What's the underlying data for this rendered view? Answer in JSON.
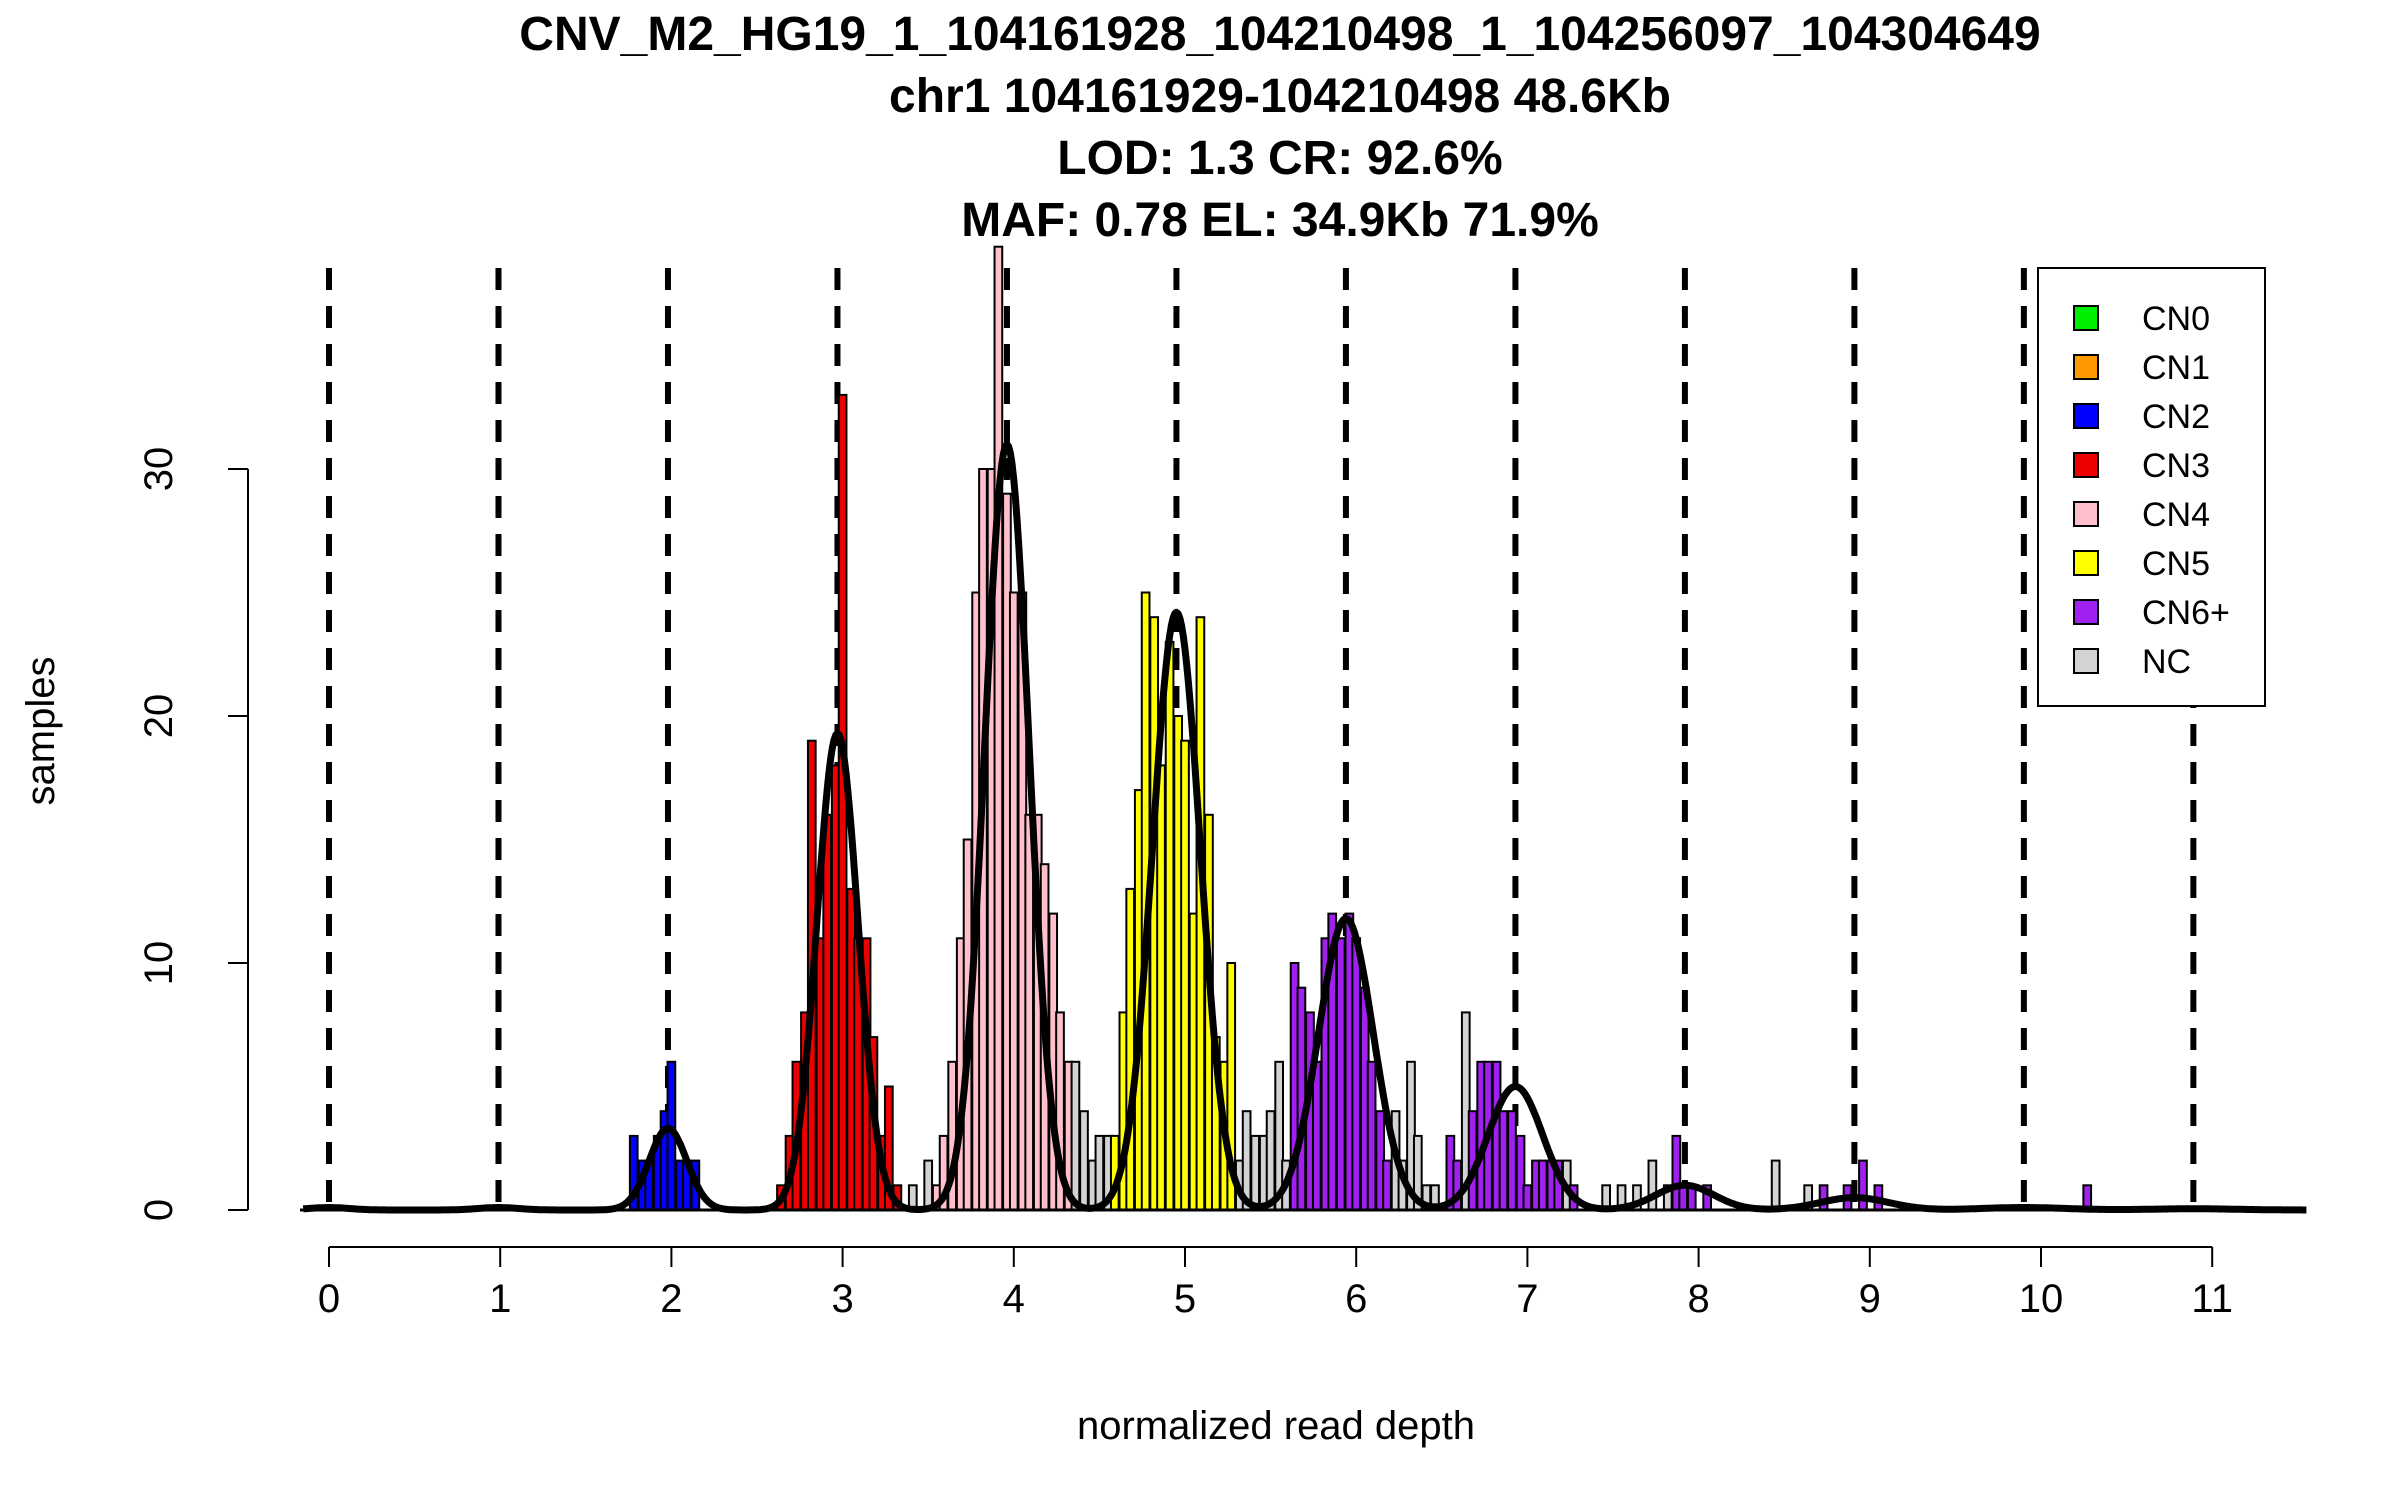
{
  "chart_data": {
    "type": "histogram",
    "title_lines": [
      "CNV_M2_HG19_1_104161928_104210498_1_104256097_104304649",
      "chr1 104161929-104210498 48.6Kb",
      "LOD: 1.3 CR: 92.6%",
      "MAF: 0.78 EL: 34.9Kb 71.9%"
    ],
    "xlabel": "normalized read depth",
    "ylabel": "samples",
    "xlim": [
      -0.15,
      11.55
    ],
    "ylim": [
      0,
      39
    ],
    "x_ticks": [
      0,
      1,
      2,
      3,
      4,
      5,
      6,
      7,
      8,
      9,
      10,
      11
    ],
    "y_ticks": [
      0,
      10,
      20,
      30
    ],
    "dashed_lines": [
      0,
      0.99,
      1.98,
      2.97,
      3.96,
      4.95,
      5.94,
      6.93,
      7.92,
      8.91,
      9.9,
      10.89
    ],
    "bin_width": 0.045,
    "legend": [
      {
        "label": "CN0",
        "color": "#00ee00"
      },
      {
        "label": "CN1",
        "color": "#ff9900"
      },
      {
        "label": "CN2",
        "color": "#0000ff"
      },
      {
        "label": "CN3",
        "color": "#ee0000"
      },
      {
        "label": "CN4",
        "color": "#ffc0cb"
      },
      {
        "label": "CN5",
        "color": "#ffff00"
      },
      {
        "label": "CN6+",
        "color": "#a020f0"
      },
      {
        "label": "NC",
        "color": "#d3d3d3"
      }
    ],
    "bars": [
      {
        "x": 1.78,
        "y": 3,
        "c": "CN2"
      },
      {
        "x": 1.83,
        "y": 2,
        "c": "CN2"
      },
      {
        "x": 1.87,
        "y": 2,
        "c": "CN2"
      },
      {
        "x": 1.92,
        "y": 3,
        "c": "CN2"
      },
      {
        "x": 1.96,
        "y": 4,
        "c": "CN2"
      },
      {
        "x": 2.0,
        "y": 6,
        "c": "CN2"
      },
      {
        "x": 2.05,
        "y": 2,
        "c": "CN2"
      },
      {
        "x": 2.09,
        "y": 2,
        "c": "CN2"
      },
      {
        "x": 2.14,
        "y": 2,
        "c": "CN2"
      },
      {
        "x": 2.64,
        "y": 1,
        "c": "CN3"
      },
      {
        "x": 2.69,
        "y": 3,
        "c": "CN3"
      },
      {
        "x": 2.73,
        "y": 6,
        "c": "CN3"
      },
      {
        "x": 2.78,
        "y": 8,
        "c": "CN3"
      },
      {
        "x": 2.82,
        "y": 19,
        "c": "CN3"
      },
      {
        "x": 2.87,
        "y": 11,
        "c": "CN3"
      },
      {
        "x": 2.91,
        "y": 16,
        "c": "CN3"
      },
      {
        "x": 2.96,
        "y": 18,
        "c": "CN3"
      },
      {
        "x": 3.0,
        "y": 33,
        "c": "CN3"
      },
      {
        "x": 3.05,
        "y": 13,
        "c": "CN3"
      },
      {
        "x": 3.09,
        "y": 11,
        "c": "CN3"
      },
      {
        "x": 3.14,
        "y": 11,
        "c": "CN3"
      },
      {
        "x": 3.18,
        "y": 7,
        "c": "CN3"
      },
      {
        "x": 3.23,
        "y": 3,
        "c": "CN3"
      },
      {
        "x": 3.27,
        "y": 5,
        "c": "CN3"
      },
      {
        "x": 3.32,
        "y": 1,
        "c": "CN3"
      },
      {
        "x": 3.41,
        "y": 1,
        "c": "NC"
      },
      {
        "x": 3.5,
        "y": 2,
        "c": "NC"
      },
      {
        "x": 3.55,
        "y": 1,
        "c": "CN4"
      },
      {
        "x": 3.59,
        "y": 3,
        "c": "CN4"
      },
      {
        "x": 3.64,
        "y": 6,
        "c": "CN4"
      },
      {
        "x": 3.69,
        "y": 11,
        "c": "CN4"
      },
      {
        "x": 3.73,
        "y": 15,
        "c": "CN4"
      },
      {
        "x": 3.78,
        "y": 25,
        "c": "CN4"
      },
      {
        "x": 3.82,
        "y": 30,
        "c": "CN4"
      },
      {
        "x": 3.87,
        "y": 30,
        "c": "CN4"
      },
      {
        "x": 3.91,
        "y": 39,
        "c": "CN4"
      },
      {
        "x": 3.96,
        "y": 29,
        "c": "CN4"
      },
      {
        "x": 4.0,
        "y": 25,
        "c": "CN4"
      },
      {
        "x": 4.05,
        "y": 25,
        "c": "CN4"
      },
      {
        "x": 4.09,
        "y": 16,
        "c": "CN4"
      },
      {
        "x": 4.14,
        "y": 16,
        "c": "CN4"
      },
      {
        "x": 4.18,
        "y": 14,
        "c": "CN4"
      },
      {
        "x": 4.23,
        "y": 12,
        "c": "CN4"
      },
      {
        "x": 4.27,
        "y": 8,
        "c": "CN4"
      },
      {
        "x": 4.32,
        "y": 6,
        "c": "CN4"
      },
      {
        "x": 4.36,
        "y": 6,
        "c": "NC"
      },
      {
        "x": 4.41,
        "y": 4,
        "c": "NC"
      },
      {
        "x": 4.46,
        "y": 2,
        "c": "NC"
      },
      {
        "x": 4.5,
        "y": 3,
        "c": "NC"
      },
      {
        "x": 4.55,
        "y": 3,
        "c": "NC"
      },
      {
        "x": 4.59,
        "y": 3,
        "c": "CN5"
      },
      {
        "x": 4.64,
        "y": 8,
        "c": "CN5"
      },
      {
        "x": 4.68,
        "y": 13,
        "c": "CN5"
      },
      {
        "x": 4.73,
        "y": 17,
        "c": "CN5"
      },
      {
        "x": 4.77,
        "y": 25,
        "c": "CN5"
      },
      {
        "x": 4.82,
        "y": 24,
        "c": "CN5"
      },
      {
        "x": 4.86,
        "y": 18,
        "c": "CN5"
      },
      {
        "x": 4.91,
        "y": 23,
        "c": "CN5"
      },
      {
        "x": 4.96,
        "y": 20,
        "c": "CN5"
      },
      {
        "x": 5.0,
        "y": 19,
        "c": "CN5"
      },
      {
        "x": 5.05,
        "y": 12,
        "c": "CN5"
      },
      {
        "x": 5.09,
        "y": 24,
        "c": "CN5"
      },
      {
        "x": 5.14,
        "y": 16,
        "c": "CN5"
      },
      {
        "x": 5.18,
        "y": 7,
        "c": "CN5"
      },
      {
        "x": 5.23,
        "y": 6,
        "c": "CN5"
      },
      {
        "x": 5.27,
        "y": 10,
        "c": "CN5"
      },
      {
        "x": 5.32,
        "y": 2,
        "c": "NC"
      },
      {
        "x": 5.36,
        "y": 4,
        "c": "NC"
      },
      {
        "x": 5.41,
        "y": 3,
        "c": "NC"
      },
      {
        "x": 5.46,
        "y": 3,
        "c": "NC"
      },
      {
        "x": 5.5,
        "y": 4,
        "c": "NC"
      },
      {
        "x": 5.55,
        "y": 6,
        "c": "NC"
      },
      {
        "x": 5.59,
        "y": 2,
        "c": "NC"
      },
      {
        "x": 5.64,
        "y": 10,
        "c": "CN6+"
      },
      {
        "x": 5.68,
        "y": 9,
        "c": "CN6+"
      },
      {
        "x": 5.73,
        "y": 8,
        "c": "CN6+"
      },
      {
        "x": 5.77,
        "y": 6,
        "c": "CN6+"
      },
      {
        "x": 5.82,
        "y": 11,
        "c": "CN6+"
      },
      {
        "x": 5.86,
        "y": 12,
        "c": "CN6+"
      },
      {
        "x": 5.91,
        "y": 11,
        "c": "CN6+"
      },
      {
        "x": 5.96,
        "y": 12,
        "c": "CN6+"
      },
      {
        "x": 6.0,
        "y": 11,
        "c": "CN6+"
      },
      {
        "x": 6.05,
        "y": 9,
        "c": "CN6+"
      },
      {
        "x": 6.09,
        "y": 6,
        "c": "CN6+"
      },
      {
        "x": 6.14,
        "y": 4,
        "c": "CN6+"
      },
      {
        "x": 6.18,
        "y": 2,
        "c": "CN6+"
      },
      {
        "x": 6.23,
        "y": 4,
        "c": "NC"
      },
      {
        "x": 6.27,
        "y": 2,
        "c": "NC"
      },
      {
        "x": 6.32,
        "y": 6,
        "c": "NC"
      },
      {
        "x": 6.36,
        "y": 3,
        "c": "NC"
      },
      {
        "x": 6.41,
        "y": 1,
        "c": "NC"
      },
      {
        "x": 6.46,
        "y": 1,
        "c": "NC"
      },
      {
        "x": 6.55,
        "y": 3,
        "c": "CN6+"
      },
      {
        "x": 6.59,
        "y": 2,
        "c": "CN6+"
      },
      {
        "x": 6.64,
        "y": 8,
        "c": "NC"
      },
      {
        "x": 6.68,
        "y": 4,
        "c": "CN6+"
      },
      {
        "x": 6.73,
        "y": 6,
        "c": "CN6+"
      },
      {
        "x": 6.77,
        "y": 6,
        "c": "CN6+"
      },
      {
        "x": 6.82,
        "y": 6,
        "c": "CN6+"
      },
      {
        "x": 6.86,
        "y": 4,
        "c": "CN6+"
      },
      {
        "x": 6.91,
        "y": 4,
        "c": "CN6+"
      },
      {
        "x": 6.96,
        "y": 3,
        "c": "CN6+"
      },
      {
        "x": 7.0,
        "y": 1,
        "c": "CN6+"
      },
      {
        "x": 7.05,
        "y": 2,
        "c": "CN6+"
      },
      {
        "x": 7.09,
        "y": 2,
        "c": "CN6+"
      },
      {
        "x": 7.14,
        "y": 2,
        "c": "CN6+"
      },
      {
        "x": 7.18,
        "y": 2,
        "c": "CN6+"
      },
      {
        "x": 7.23,
        "y": 2,
        "c": "NC"
      },
      {
        "x": 7.27,
        "y": 1,
        "c": "CN6+"
      },
      {
        "x": 7.46,
        "y": 1,
        "c": "NC"
      },
      {
        "x": 7.55,
        "y": 1,
        "c": "NC"
      },
      {
        "x": 7.64,
        "y": 1,
        "c": "NC"
      },
      {
        "x": 7.73,
        "y": 2,
        "c": "NC"
      },
      {
        "x": 7.82,
        "y": 1,
        "c": "NC"
      },
      {
        "x": 7.87,
        "y": 3,
        "c": "CN6+"
      },
      {
        "x": 7.91,
        "y": 1,
        "c": "CN6+"
      },
      {
        "x": 7.96,
        "y": 1,
        "c": "CN6+"
      },
      {
        "x": 8.05,
        "y": 1,
        "c": "CN6+"
      },
      {
        "x": 8.45,
        "y": 2,
        "c": "NC"
      },
      {
        "x": 8.64,
        "y": 1,
        "c": "NC"
      },
      {
        "x": 8.73,
        "y": 1,
        "c": "CN6+"
      },
      {
        "x": 8.87,
        "y": 1,
        "c": "CN6+"
      },
      {
        "x": 8.96,
        "y": 2,
        "c": "CN6+"
      },
      {
        "x": 9.05,
        "y": 1,
        "c": "CN6+"
      },
      {
        "x": 10.27,
        "y": 1,
        "c": "CN6+"
      }
    ],
    "fit_components": [
      {
        "mu": 0.0,
        "sd": 0.12,
        "peak": 0.1
      },
      {
        "mu": 0.99,
        "sd": 0.12,
        "peak": 0.1
      },
      {
        "mu": 1.98,
        "sd": 0.11,
        "peak": 3.3
      },
      {
        "mu": 2.97,
        "sd": 0.12,
        "peak": 19.3
      },
      {
        "mu": 3.96,
        "sd": 0.13,
        "peak": 31.0
      },
      {
        "mu": 4.95,
        "sd": 0.14,
        "peak": 24.2
      },
      {
        "mu": 5.94,
        "sd": 0.16,
        "peak": 11.8
      },
      {
        "mu": 6.93,
        "sd": 0.16,
        "peak": 5.0
      },
      {
        "mu": 7.92,
        "sd": 0.17,
        "peak": 1.0
      },
      {
        "mu": 8.91,
        "sd": 0.2,
        "peak": 0.5
      },
      {
        "mu": 9.9,
        "sd": 0.25,
        "peak": 0.1
      },
      {
        "mu": 10.89,
        "sd": 0.25,
        "peak": 0.05
      }
    ]
  }
}
